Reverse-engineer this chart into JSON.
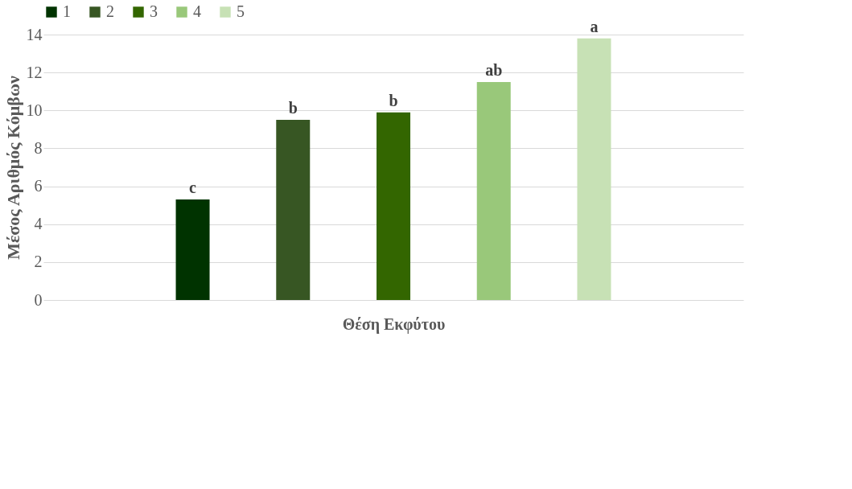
{
  "chart_data": {
    "type": "bar",
    "xlabel": "Θέση Εκφύτου",
    "ylabel": "Μέσος Αριθμός Κόμβων",
    "categories": [
      null
    ],
    "series": [
      {
        "name": "1",
        "color": "#003300",
        "values": [
          5.3
        ],
        "value_labels": [
          "c"
        ]
      },
      {
        "name": "2",
        "color": "#375623",
        "values": [
          9.5
        ],
        "value_labels": [
          "b"
        ]
      },
      {
        "name": "3",
        "color": "#336600",
        "values": [
          9.9
        ],
        "value_labels": [
          "b"
        ]
      },
      {
        "name": "4",
        "color": "#99c87a",
        "values": [
          11.5
        ],
        "value_labels": [
          "ab"
        ]
      },
      {
        "name": "5",
        "color": "#c7e1b5",
        "values": [
          13.8
        ],
        "value_labels": [
          "a"
        ]
      }
    ],
    "ylim": [
      0,
      14
    ],
    "yticks": [
      0,
      2,
      4,
      6,
      8,
      10,
      12,
      14
    ],
    "grid": "y",
    "legend": "top left",
    "tick_labels": "y"
  }
}
